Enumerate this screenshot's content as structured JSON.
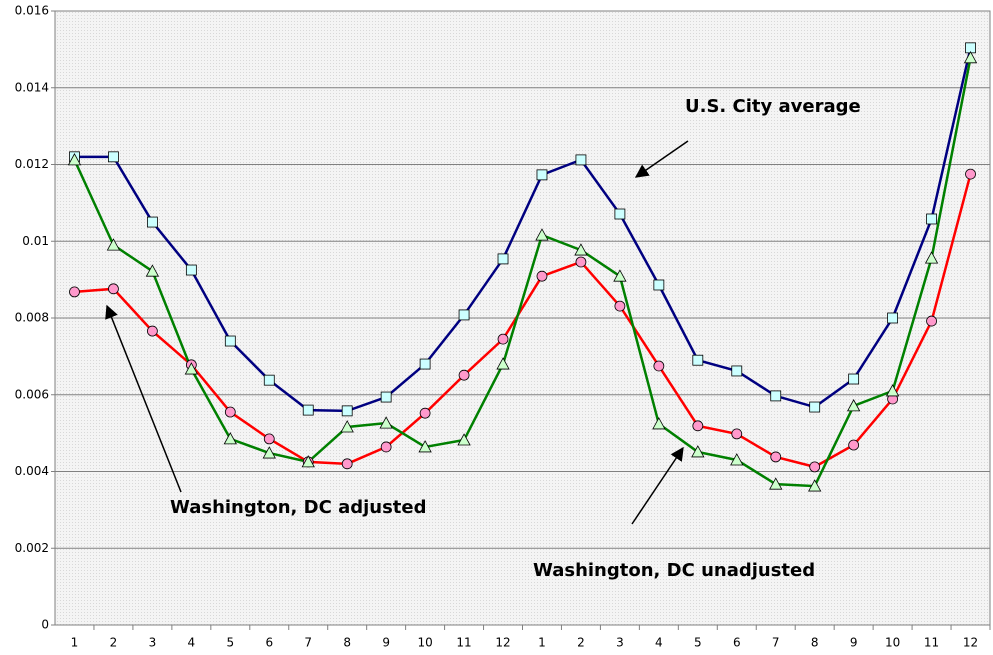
{
  "chart_data": {
    "type": "line",
    "categories": [
      1,
      2,
      3,
      4,
      5,
      6,
      7,
      8,
      9,
      10,
      11,
      12,
      1,
      2,
      3,
      4,
      5,
      6,
      7,
      8,
      9,
      10,
      11,
      12
    ],
    "series": [
      {
        "name": "U.S. City average",
        "color": "#000080",
        "marker": "square",
        "marker_fill": "#ccffff",
        "values": [
          0.0122,
          0.0122,
          0.0105,
          0.00925,
          0.0074,
          0.00638,
          0.0056,
          0.00558,
          0.00594,
          0.0068,
          0.00808,
          0.00954,
          0.01173,
          0.01212,
          0.01071,
          0.00886,
          0.0069,
          0.00662,
          0.00597,
          0.00568,
          0.00641,
          0.008,
          0.01058,
          0.01504
        ]
      },
      {
        "name": "Washington, DC adjusted",
        "color": "#ff0000",
        "marker": "circle",
        "marker_fill": "#ff99cc",
        "values": [
          0.00868,
          0.00876,
          0.00766,
          0.00678,
          0.00555,
          0.00485,
          0.00425,
          0.0042,
          0.00464,
          0.00552,
          0.00651,
          0.00745,
          0.00909,
          0.00946,
          0.00831,
          0.00675,
          0.00519,
          0.00498,
          0.00438,
          0.00412,
          0.00469,
          0.00589,
          0.00792,
          0.01175
        ]
      },
      {
        "name": "Washington, DC unadjusted",
        "color": "#008000",
        "marker": "triangle",
        "marker_fill": "#ccffcc",
        "values": [
          0.01212,
          0.0099,
          0.00922,
          0.00667,
          0.00485,
          0.00448,
          0.00425,
          0.00516,
          0.00526,
          0.00464,
          0.00482,
          0.0068,
          0.01016,
          0.00977,
          0.00909,
          0.00524,
          0.00451,
          0.0043,
          0.00367,
          0.00362,
          0.00571,
          0.0061,
          0.00956,
          0.01478
        ]
      }
    ],
    "ylim": [
      0,
      0.016
    ],
    "yticks": [
      0,
      0.002,
      0.004,
      0.006,
      0.008,
      0.01,
      0.012,
      0.014,
      0.016
    ],
    "grid": true
  }
}
